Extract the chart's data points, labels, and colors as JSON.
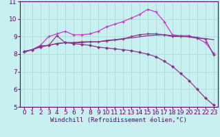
{
  "bg_color": "#c8f0f0",
  "grid_color": "#a8dada",
  "line_color_bright": "#cc33cc",
  "line_color_dark": "#883388",
  "xlabel": "Windchill (Refroidissement éolien,°C)",
  "xlim": [
    -0.5,
    23.5
  ],
  "ylim": [
    5,
    11
  ],
  "xticks": [
    0,
    1,
    2,
    3,
    4,
    5,
    6,
    7,
    8,
    9,
    10,
    11,
    12,
    13,
    14,
    15,
    16,
    17,
    18,
    19,
    20,
    21,
    22,
    23
  ],
  "yticks": [
    5,
    6,
    7,
    8,
    9,
    10,
    11
  ],
  "series_top_x": [
    0,
    1,
    2,
    3,
    4,
    5,
    6,
    7,
    8,
    9,
    10,
    11,
    12,
    13,
    14,
    15,
    16,
    17,
    18,
    19,
    20,
    21,
    22,
    23
  ],
  "series_top_y": [
    8.15,
    8.25,
    8.5,
    9.0,
    9.15,
    9.3,
    9.1,
    9.1,
    9.15,
    9.3,
    9.55,
    9.7,
    9.85,
    10.05,
    10.25,
    10.55,
    10.4,
    9.85,
    9.1,
    9.05,
    9.05,
    8.9,
    8.65,
    8.05
  ],
  "series_mid_x": [
    0,
    1,
    2,
    3,
    4,
    5,
    6,
    7,
    8,
    9,
    10,
    11,
    12,
    13,
    14,
    15,
    16,
    17,
    18,
    19,
    20,
    21,
    22,
    23
  ],
  "series_mid_y": [
    8.1,
    8.25,
    8.45,
    8.5,
    9.05,
    8.65,
    8.65,
    8.7,
    8.7,
    8.7,
    8.75,
    8.8,
    8.85,
    9.0,
    9.1,
    9.15,
    9.15,
    9.1,
    9.0,
    9.0,
    9.0,
    8.95,
    8.85,
    7.95
  ],
  "series_flat_x": [
    0,
    1,
    2,
    3,
    4,
    5,
    6,
    7,
    8,
    9,
    10,
    11,
    12,
    13,
    14,
    15,
    16,
    17,
    18,
    19,
    20,
    21,
    22,
    23
  ],
  "series_flat_y": [
    8.15,
    8.25,
    8.45,
    8.5,
    8.6,
    8.65,
    8.65,
    8.65,
    8.7,
    8.7,
    8.78,
    8.82,
    8.88,
    8.92,
    8.98,
    9.05,
    9.08,
    9.1,
    9.05,
    9.0,
    8.98,
    8.9,
    8.88,
    8.82
  ],
  "series_drop_x": [
    0,
    1,
    2,
    3,
    4,
    5,
    6,
    7,
    8,
    9,
    10,
    11,
    12,
    13,
    14,
    15,
    16,
    17,
    18,
    19,
    20,
    21,
    22,
    23
  ],
  "series_drop_y": [
    8.15,
    8.25,
    8.4,
    8.5,
    8.6,
    8.65,
    8.6,
    8.55,
    8.5,
    8.4,
    8.35,
    8.3,
    8.25,
    8.2,
    8.1,
    8.0,
    7.85,
    7.6,
    7.3,
    6.9,
    6.5,
    6.0,
    5.5,
    5.1
  ],
  "tick_fontsize": 6.5,
  "xlabel_fontsize": 6.5
}
